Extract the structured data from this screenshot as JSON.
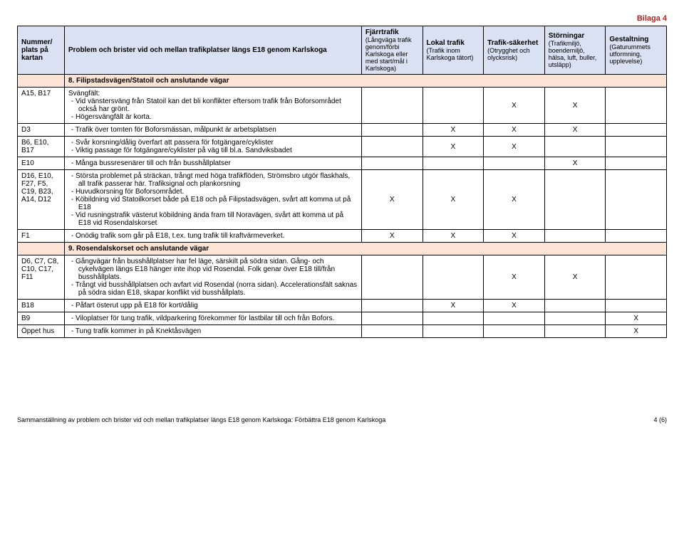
{
  "bilaga": "Bilaga 4",
  "header": {
    "col0": "Nummer/ plats på kartan",
    "col1": "Problem och brister vid och mellan trafikplatser längs E18 genom Karlskoga",
    "col2_main": "Fjärrtrafik",
    "col2_sub": "(Långväga trafik genom/förbi Karlskoga eller med start/mål i Karlskoga)",
    "col3_main": "Lokal trafik",
    "col3_sub": "(Trafik inom Karlskoga tätort)",
    "col4_main": "Trafik-säkerhet",
    "col4_sub": "(Otrygghet och olycksrisk)",
    "col5_main": "Störningar",
    "col5_sub": "(Trafikmiljö, boendemiljö, hälsa, luft, buller, utsläpp)",
    "col6_main": "Gestaltning",
    "col6_sub": "(Gaturummets utformning, upplevelse)"
  },
  "sections": {
    "s8": "8. Filipstadsvägen/Statoil och anslutande vägar",
    "s9": "9. Rosendalskorset och anslutande vägar"
  },
  "rows": {
    "r1": {
      "num": "A15, B17",
      "desc_lead": "Svängfält:",
      "desc_items": [
        "Vid vänstersväng från Statoil kan det bli konflikter eftersom trafik från Boforsområdet också har grönt.",
        "Högersvängfält är korta."
      ],
      "x": [
        "",
        "",
        "X",
        "X",
        ""
      ]
    },
    "r2": {
      "num": "D3",
      "desc_items": [
        "Trafik över tomten för Boforsmässan, målpunkt är arbetsplatsen"
      ],
      "x": [
        "",
        "X",
        "X",
        "X",
        ""
      ]
    },
    "r3": {
      "num": "B6, E10, B17",
      "desc_items": [
        "Svår korsning/dålig överfart att passera för fotgängare/cyklister",
        "Viktig passage för fotgängare/cyklister på väg till bl.a. Sandviksbadet"
      ],
      "x": [
        "",
        "X",
        "X",
        "",
        ""
      ]
    },
    "r4": {
      "num": "E10",
      "desc_items": [
        "Många bussresenärer till och från busshållplatser"
      ],
      "x": [
        "",
        "",
        "",
        "X",
        ""
      ]
    },
    "r5": {
      "num": "D16, E10, F27, F5, C19, B23, A14, D12",
      "desc_items": [
        "Största problemet på sträckan, trångt med höga trafikflöden, Strömsbro utgör flaskhals, all trafik passerar här. Trafiksignal och plankorsning",
        "Huvudkorsning för Boforsområdet.",
        "Köbildning vid Statoilkorset både på E18 och på Filipstadsvägen, svårt att komma ut på E18",
        "Vid rusningstrafik västerut köbildning ända fram till Noravägen, svårt att komma ut på E18 vid Rosendalskorset"
      ],
      "x": [
        "X",
        "X",
        "X",
        "",
        ""
      ]
    },
    "r6": {
      "num": "F1",
      "desc_items": [
        "Onödig trafik som går på E18, t.ex. tung trafik till kraftvärmeverket."
      ],
      "x": [
        "X",
        "X",
        "X",
        "",
        ""
      ]
    },
    "r7": {
      "num": "D6, C7, C8, C10, C17, F11",
      "desc_items": [
        "Gångvägar från busshållplatser har fel läge, särskilt på södra sidan. Gång- och cykelvägen längs E18 hänger inte ihop vid Rosendal. Folk genar över E18 till/från busshållplats.",
        "Trångt vid busshållplatsen och avfart vid Rosendal (norra sidan). Accelerationsfält saknas på södra sidan E18, skapar konflikt vid busshållplats."
      ],
      "x": [
        "",
        "",
        "X",
        "X",
        ""
      ]
    },
    "r8": {
      "num": "B18",
      "desc_items": [
        "Påfart österut upp på E18 för kort/dålig"
      ],
      "x": [
        "",
        "X",
        "X",
        "",
        ""
      ]
    },
    "r9": {
      "num": "B9",
      "desc_items": [
        "Viloplatser för tung trafik, vildparkering förekommer för lastbilar till och från Bofors."
      ],
      "x": [
        "",
        "",
        "",
        "",
        "X"
      ]
    },
    "r10": {
      "num": "Öppet hus",
      "desc_items": [
        "Tung trafik kommer in på Knektåsvägen"
      ],
      "x": [
        "",
        "",
        "",
        "",
        "X"
      ]
    }
  },
  "footer": {
    "left": "Sammanställning av problem och brister vid och mellan trafikplatser längs E18 genom Karlskoga: Förbättra E18 genom Karlskoga",
    "right": "4 (6)"
  }
}
